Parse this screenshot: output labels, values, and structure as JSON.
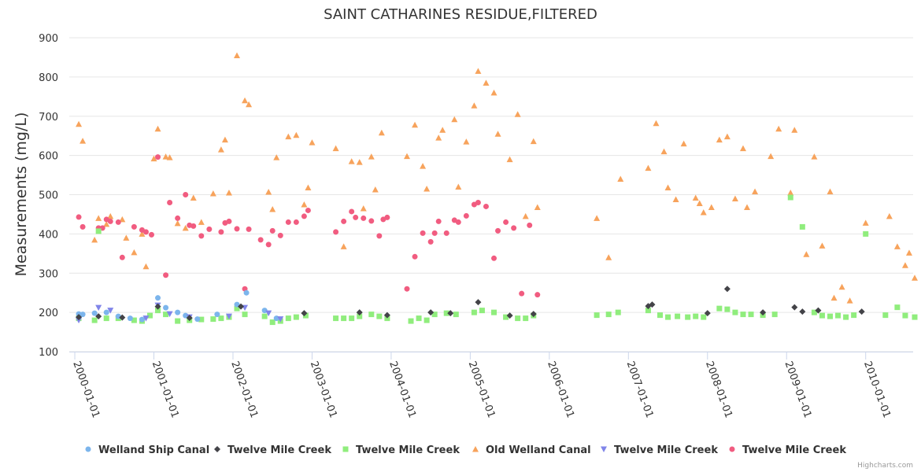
{
  "credits": "Highcharts.com",
  "chart_data": {
    "type": "scatter",
    "title": "SAINT CATHARINES RESIDUE,FILTERED",
    "ylabel": "Measurements (mg/L)",
    "xlabel": "",
    "ylim": [
      100,
      900
    ],
    "yticks": [
      100,
      200,
      300,
      400,
      500,
      600,
      700,
      800,
      900
    ],
    "xlim": [
      1999.93,
      2010.6
    ],
    "xticks": [
      {
        "value": 2000,
        "label": "2000-01-01"
      },
      {
        "value": 2001,
        "label": "2001-01-01"
      },
      {
        "value": 2002,
        "label": "2002-01-01"
      },
      {
        "value": 2003,
        "label": "2003-01-01"
      },
      {
        "value": 2004,
        "label": "2004-01-01"
      },
      {
        "value": 2005,
        "label": "2005-01-01"
      },
      {
        "value": 2006,
        "label": "2006-01-01"
      },
      {
        "value": 2007,
        "label": "2007-01-01"
      },
      {
        "value": 2008,
        "label": "2008-01-01"
      },
      {
        "value": 2009,
        "label": "2009-01-01"
      },
      {
        "value": 2010,
        "label": "2010-01-01"
      }
    ],
    "grid": true,
    "legend": "bottom",
    "series": [
      {
        "name": "Welland Ship Canal",
        "color": "#7cb5ec",
        "marker": "circle",
        "points": [
          [
            2000.05,
            196
          ],
          [
            2000.1,
            195
          ],
          [
            2000.25,
            198
          ],
          [
            2000.4,
            200
          ],
          [
            2000.55,
            190
          ],
          [
            2000.7,
            185
          ],
          [
            2000.85,
            182
          ],
          [
            2001.05,
            237
          ],
          [
            2001.15,
            212
          ],
          [
            2001.3,
            200
          ],
          [
            2001.4,
            192
          ],
          [
            2001.55,
            183
          ],
          [
            2001.8,
            195
          ],
          [
            2002.05,
            220
          ],
          [
            2002.17,
            250
          ],
          [
            2002.4,
            205
          ],
          [
            2002.55,
            185
          ]
        ]
      },
      {
        "name": "Twelve Mile Creek",
        "color": "#434348",
        "marker": "diamond",
        "points": [
          [
            2000.05,
            188
          ],
          [
            2000.3,
            190
          ],
          [
            2000.6,
            187
          ],
          [
            2001.05,
            215
          ],
          [
            2001.45,
            186
          ],
          [
            2002.1,
            215
          ],
          [
            2002.9,
            198
          ],
          [
            2003.6,
            200
          ],
          [
            2003.95,
            193
          ],
          [
            2004.5,
            200
          ],
          [
            2004.75,
            198
          ],
          [
            2005.1,
            226
          ],
          [
            2005.5,
            192
          ],
          [
            2005.8,
            196
          ],
          [
            2007.25,
            216
          ],
          [
            2007.3,
            220
          ],
          [
            2008.0,
            198
          ],
          [
            2008.25,
            260
          ],
          [
            2008.7,
            200
          ],
          [
            2009.1,
            213
          ],
          [
            2009.2,
            202
          ],
          [
            2009.4,
            205
          ],
          [
            2009.95,
            202
          ]
        ]
      },
      {
        "name": "Twelve Mile Creek",
        "color": "#90ed7d",
        "marker": "square",
        "points": [
          [
            2000.05,
            185
          ],
          [
            2000.25,
            180
          ],
          [
            2000.3,
            407
          ],
          [
            2000.4,
            185
          ],
          [
            2000.55,
            185
          ],
          [
            2000.75,
            180
          ],
          [
            2000.85,
            178
          ],
          [
            2000.95,
            192
          ],
          [
            2001.05,
            205
          ],
          [
            2001.15,
            195
          ],
          [
            2001.3,
            178
          ],
          [
            2001.45,
            180
          ],
          [
            2001.6,
            182
          ],
          [
            2001.75,
            183
          ],
          [
            2001.85,
            185
          ],
          [
            2001.95,
            188
          ],
          [
            2002.05,
            210
          ],
          [
            2002.15,
            195
          ],
          [
            2002.4,
            190
          ],
          [
            2002.5,
            175
          ],
          [
            2002.6,
            178
          ],
          [
            2002.7,
            185
          ],
          [
            2002.8,
            188
          ],
          [
            2002.92,
            192
          ],
          [
            2003.3,
            185
          ],
          [
            2003.4,
            185
          ],
          [
            2003.5,
            185
          ],
          [
            2003.6,
            190
          ],
          [
            2003.75,
            195
          ],
          [
            2003.85,
            190
          ],
          [
            2003.95,
            185
          ],
          [
            2004.25,
            178
          ],
          [
            2004.35,
            185
          ],
          [
            2004.45,
            180
          ],
          [
            2004.55,
            195
          ],
          [
            2004.7,
            198
          ],
          [
            2004.82,
            195
          ],
          [
            2005.05,
            200
          ],
          [
            2005.15,
            205
          ],
          [
            2005.3,
            200
          ],
          [
            2005.45,
            188
          ],
          [
            2005.6,
            185
          ],
          [
            2005.7,
            185
          ],
          [
            2005.8,
            192
          ],
          [
            2006.6,
            193
          ],
          [
            2006.75,
            195
          ],
          [
            2006.87,
            200
          ],
          [
            2007.25,
            205
          ],
          [
            2007.4,
            193
          ],
          [
            2007.5,
            188
          ],
          [
            2007.62,
            190
          ],
          [
            2007.75,
            188
          ],
          [
            2007.85,
            190
          ],
          [
            2007.95,
            188
          ],
          [
            2008.15,
            210
          ],
          [
            2008.25,
            208
          ],
          [
            2008.35,
            200
          ],
          [
            2008.45,
            195
          ],
          [
            2008.55,
            195
          ],
          [
            2008.7,
            193
          ],
          [
            2008.85,
            195
          ],
          [
            2009.05,
            493
          ],
          [
            2009.2,
            418
          ],
          [
            2009.35,
            200
          ],
          [
            2009.45,
            192
          ],
          [
            2009.55,
            190
          ],
          [
            2009.65,
            192
          ],
          [
            2009.75,
            188
          ],
          [
            2009.85,
            193
          ],
          [
            2010.0,
            400
          ],
          [
            2010.25,
            193
          ],
          [
            2010.4,
            213
          ],
          [
            2010.5,
            192
          ],
          [
            2010.62,
            188
          ]
        ]
      },
      {
        "name": "Old Welland Canal",
        "color": "#f7a35c",
        "marker": "triangle",
        "points": [
          [
            2000.05,
            680
          ],
          [
            2000.1,
            637
          ],
          [
            2000.25,
            385
          ],
          [
            2000.3,
            440
          ],
          [
            2000.4,
            425
          ],
          [
            2000.45,
            445
          ],
          [
            2000.6,
            437
          ],
          [
            2000.65,
            390
          ],
          [
            2000.75,
            353
          ],
          [
            2000.85,
            400
          ],
          [
            2000.9,
            317
          ],
          [
            2001.0,
            592
          ],
          [
            2001.05,
            668
          ],
          [
            2001.15,
            597
          ],
          [
            2001.2,
            595
          ],
          [
            2001.3,
            427
          ],
          [
            2001.4,
            415
          ],
          [
            2001.5,
            492
          ],
          [
            2001.6,
            430
          ],
          [
            2001.75,
            503
          ],
          [
            2001.85,
            615
          ],
          [
            2001.9,
            640
          ],
          [
            2001.95,
            505
          ],
          [
            2002.05,
            855
          ],
          [
            2002.15,
            740
          ],
          [
            2002.2,
            730
          ],
          [
            2002.45,
            507
          ],
          [
            2002.5,
            463
          ],
          [
            2002.55,
            595
          ],
          [
            2002.7,
            648
          ],
          [
            2002.8,
            652
          ],
          [
            2002.9,
            475
          ],
          [
            2002.95,
            518
          ],
          [
            2003.0,
            633
          ],
          [
            2003.3,
            618
          ],
          [
            2003.4,
            368
          ],
          [
            2003.5,
            585
          ],
          [
            2003.6,
            583
          ],
          [
            2003.65,
            465
          ],
          [
            2003.75,
            597
          ],
          [
            2003.8,
            513
          ],
          [
            2003.88,
            658
          ],
          [
            2004.2,
            598
          ],
          [
            2004.3,
            678
          ],
          [
            2004.4,
            573
          ],
          [
            2004.45,
            515
          ],
          [
            2004.6,
            645
          ],
          [
            2004.65,
            665
          ],
          [
            2004.8,
            692
          ],
          [
            2004.85,
            520
          ],
          [
            2004.95,
            635
          ],
          [
            2005.05,
            727
          ],
          [
            2005.1,
            815
          ],
          [
            2005.2,
            785
          ],
          [
            2005.3,
            760
          ],
          [
            2005.35,
            655
          ],
          [
            2005.5,
            590
          ],
          [
            2005.6,
            705
          ],
          [
            2005.7,
            445
          ],
          [
            2005.8,
            636
          ],
          [
            2005.85,
            468
          ],
          [
            2006.6,
            440
          ],
          [
            2006.75,
            340
          ],
          [
            2006.9,
            540
          ],
          [
            2007.25,
            568
          ],
          [
            2007.35,
            682
          ],
          [
            2007.45,
            610
          ],
          [
            2007.5,
            518
          ],
          [
            2007.6,
            488
          ],
          [
            2007.7,
            630
          ],
          [
            2007.85,
            492
          ],
          [
            2007.9,
            478
          ],
          [
            2007.95,
            455
          ],
          [
            2008.05,
            468
          ],
          [
            2008.15,
            640
          ],
          [
            2008.25,
            648
          ],
          [
            2008.35,
            490
          ],
          [
            2008.45,
            618
          ],
          [
            2008.5,
            468
          ],
          [
            2008.6,
            508
          ],
          [
            2008.8,
            598
          ],
          [
            2008.9,
            668
          ],
          [
            2009.05,
            505
          ],
          [
            2009.1,
            665
          ],
          [
            2009.25,
            348
          ],
          [
            2009.35,
            597
          ],
          [
            2009.45,
            370
          ],
          [
            2009.55,
            508
          ],
          [
            2009.6,
            237
          ],
          [
            2009.7,
            265
          ],
          [
            2009.8,
            230
          ],
          [
            2010.0,
            428
          ],
          [
            2010.3,
            445
          ],
          [
            2010.4,
            368
          ],
          [
            2010.5,
            320
          ],
          [
            2010.55,
            352
          ],
          [
            2010.62,
            288
          ]
        ]
      },
      {
        "name": "Twelve Mile Creek",
        "color": "#8085e9",
        "marker": "triangle-down",
        "points": [
          [
            2000.05,
            180
          ],
          [
            2000.3,
            212
          ],
          [
            2000.45,
            205
          ],
          [
            2000.9,
            185
          ],
          [
            2001.05,
            218
          ],
          [
            2001.2,
            196
          ],
          [
            2001.45,
            188
          ],
          [
            2001.95,
            190
          ],
          [
            2002.15,
            212
          ],
          [
            2002.45,
            198
          ],
          [
            2002.6,
            183
          ]
        ]
      },
      {
        "name": "Twelve Mile Creek",
        "color": "#f15c80",
        "marker": "circle",
        "points": [
          [
            2000.05,
            443
          ],
          [
            2000.1,
            418
          ],
          [
            2000.3,
            415
          ],
          [
            2000.35,
            415
          ],
          [
            2000.4,
            437
          ],
          [
            2000.45,
            432
          ],
          [
            2000.55,
            430
          ],
          [
            2000.6,
            340
          ],
          [
            2000.75,
            418
          ],
          [
            2000.85,
            410
          ],
          [
            2000.9,
            405
          ],
          [
            2000.97,
            398
          ],
          [
            2001.05,
            596
          ],
          [
            2001.15,
            295
          ],
          [
            2001.2,
            480
          ],
          [
            2001.3,
            440
          ],
          [
            2001.4,
            500
          ],
          [
            2001.45,
            422
          ],
          [
            2001.5,
            420
          ],
          [
            2001.6,
            395
          ],
          [
            2001.7,
            412
          ],
          [
            2001.85,
            405
          ],
          [
            2001.9,
            428
          ],
          [
            2001.95,
            432
          ],
          [
            2002.05,
            413
          ],
          [
            2002.15,
            260
          ],
          [
            2002.2,
            412
          ],
          [
            2002.35,
            385
          ],
          [
            2002.45,
            373
          ],
          [
            2002.5,
            408
          ],
          [
            2002.6,
            396
          ],
          [
            2002.7,
            430
          ],
          [
            2002.8,
            430
          ],
          [
            2002.9,
            445
          ],
          [
            2002.95,
            460
          ],
          [
            2003.3,
            405
          ],
          [
            2003.4,
            432
          ],
          [
            2003.5,
            457
          ],
          [
            2003.55,
            442
          ],
          [
            2003.65,
            440
          ],
          [
            2003.75,
            433
          ],
          [
            2003.85,
            395
          ],
          [
            2003.9,
            437
          ],
          [
            2003.95,
            442
          ],
          [
            2004.2,
            260
          ],
          [
            2004.3,
            342
          ],
          [
            2004.4,
            402
          ],
          [
            2004.5,
            380
          ],
          [
            2004.55,
            402
          ],
          [
            2004.6,
            432
          ],
          [
            2004.7,
            402
          ],
          [
            2004.8,
            435
          ],
          [
            2004.85,
            430
          ],
          [
            2004.95,
            446
          ],
          [
            2005.05,
            475
          ],
          [
            2005.1,
            480
          ],
          [
            2005.2,
            470
          ],
          [
            2005.3,
            338
          ],
          [
            2005.35,
            408
          ],
          [
            2005.45,
            430
          ],
          [
            2005.55,
            415
          ],
          [
            2005.65,
            248
          ],
          [
            2005.75,
            422
          ],
          [
            2005.85,
            245
          ]
        ]
      }
    ]
  }
}
